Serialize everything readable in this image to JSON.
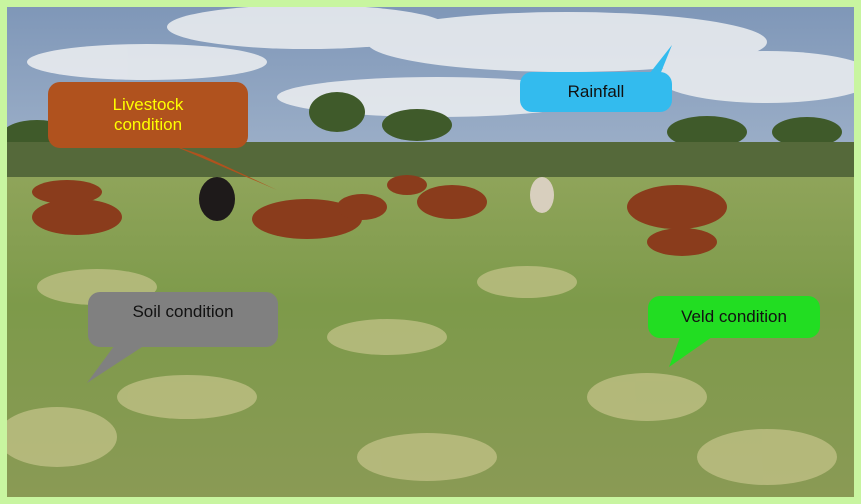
{
  "callouts": [
    {
      "label": "Livestock condition"
    },
    {
      "label": "Rainfall"
    },
    {
      "label": "Soil condition"
    },
    {
      "label": "Veld condition"
    }
  ]
}
